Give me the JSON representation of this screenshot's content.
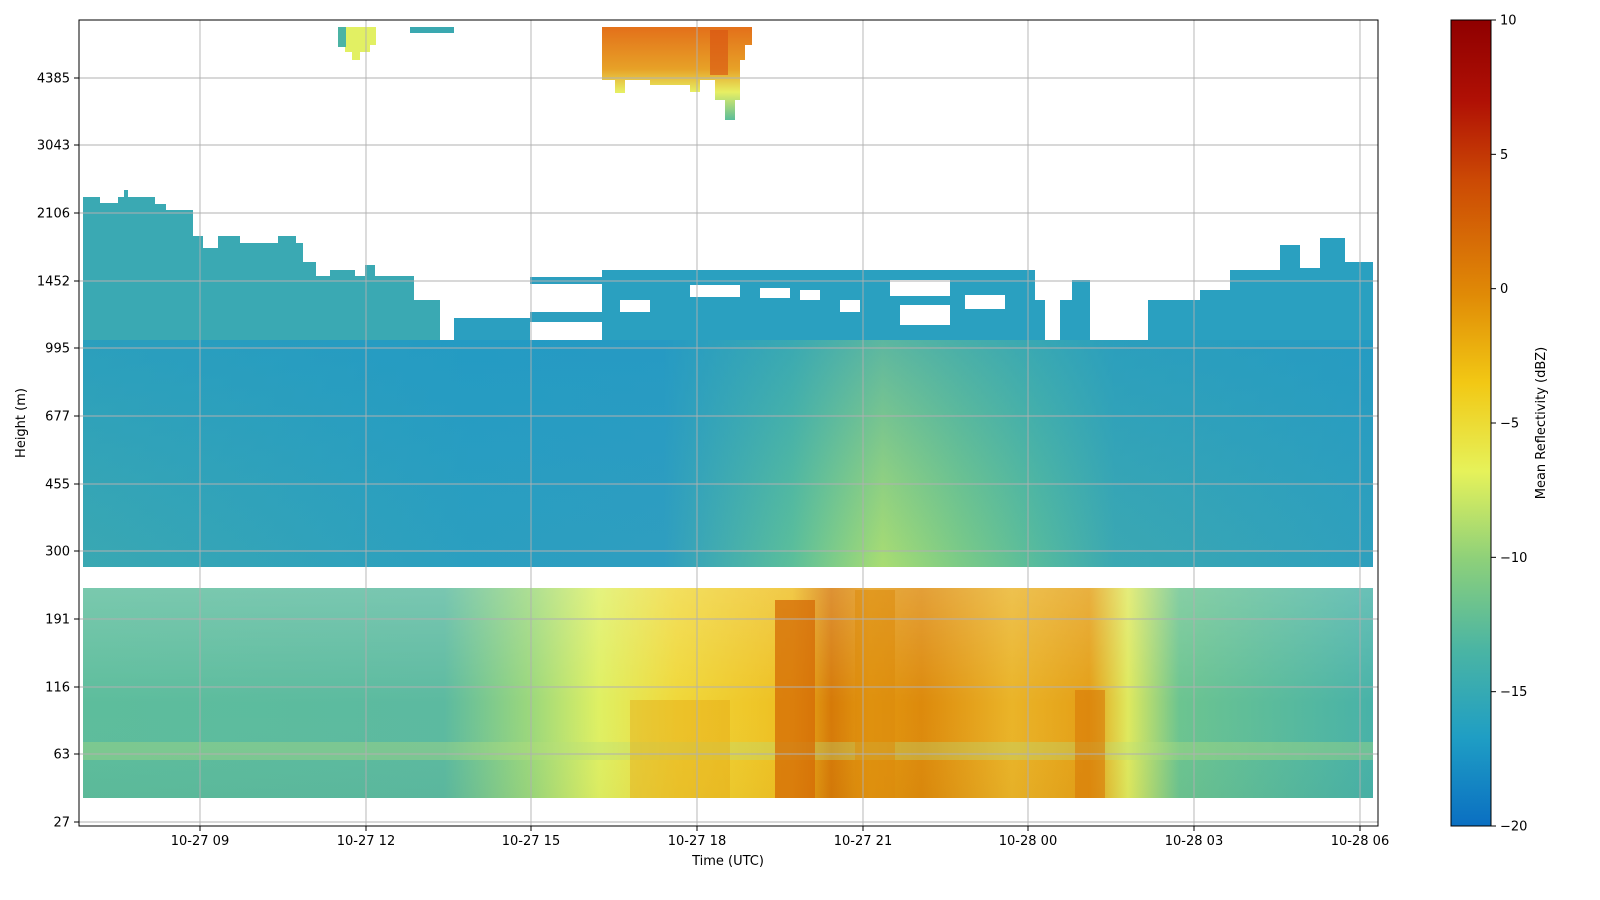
{
  "chart_data": {
    "type": "heatmap",
    "title": "",
    "xlabel": "Time (UTC)",
    "ylabel": "Height (m)",
    "x_ticks": [
      "10-27 09",
      "10-27 12",
      "10-27 15",
      "10-27 18",
      "10-27 21",
      "10-28 00",
      "10-28 03",
      "10-28 06"
    ],
    "y_ticks": [
      "27",
      "63",
      "116",
      "191",
      "300",
      "455",
      "677",
      "995",
      "1452",
      "2106",
      "3043",
      "4385"
    ],
    "x_range": [
      "10-27 06:50",
      "10-28 06:20"
    ],
    "y_scale": "log",
    "grid": true,
    "colorbar": {
      "label": "Mean Reflectivity (dBZ)",
      "min": -20,
      "max": 10,
      "ticks": [
        "10",
        "5",
        "0",
        "−5",
        "−10",
        "−15",
        "−20"
      ],
      "colormap": [
        "#0a6fc2",
        "#1f9ec4",
        "#4bb5a3",
        "#8dd07a",
        "#e6f25a",
        "#f2c814",
        "#e08a06",
        "#cc4a05",
        "#b01005",
        "#8f0000"
      ]
    },
    "data_regions": [
      {
        "time_start": "10-27 06:55",
        "time_end": "10-28 06:15",
        "height_bottom": 42,
        "height_top": 225,
        "reflectivity_dbz": -14
      },
      {
        "time_start": "10-27 06:55",
        "time_end": "10-28 06:15",
        "height_bottom": 260,
        "height_top": 1000,
        "reflectivity_dbz": -16
      },
      {
        "time_start": "10-27 16:20",
        "time_end": "10-28 01:15",
        "height_bottom": 42,
        "height_top": 225,
        "reflectivity_dbz": -5
      },
      {
        "time_start": "10-27 19:30",
        "time_end": "10-27 20:15",
        "height_bottom": 42,
        "height_top": 225,
        "reflectivity_dbz": 0
      },
      {
        "time_start": "10-27 21:00",
        "time_end": "10-27 21:45",
        "height_bottom": 42,
        "height_top": 225,
        "reflectivity_dbz": -2
      },
      {
        "time_start": "10-27 06:55",
        "time_end": "10-27 09:00",
        "height_bottom": 1000,
        "height_top": 2200,
        "reflectivity_dbz": -16
      },
      {
        "time_start": "10-27 16:20",
        "time_end": "10-28 00:00",
        "height_bottom": 1000,
        "height_top": 1500,
        "reflectivity_dbz": -17
      },
      {
        "time_start": "10-27 16:20",
        "time_end": "10-27 19:00",
        "height_bottom": 4300,
        "height_top": 5600,
        "reflectivity_dbz": -1
      },
      {
        "time_start": "10-27 11:30",
        "time_end": "10-27 12:10",
        "height_bottom": 4700,
        "height_top": 5600,
        "reflectivity_dbz": -11
      }
    ]
  }
}
